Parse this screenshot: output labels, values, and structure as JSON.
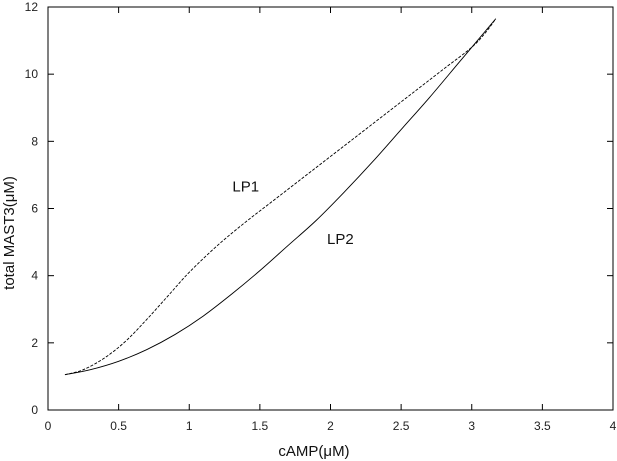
{
  "chart_data": {
    "type": "line",
    "xlabel": "cAMP(μM)",
    "ylabel": "total MAST3(μM)",
    "xlim": [
      0,
      4
    ],
    "ylim": [
      0,
      12
    ],
    "x_ticks": [
      "0",
      "0.5",
      "1",
      "1.5",
      "2",
      "2.5",
      "3",
      "3.5",
      "4"
    ],
    "y_ticks": [
      "0",
      "2",
      "4",
      "6",
      "8",
      "10",
      "12"
    ],
    "grid": false,
    "legend": "none",
    "series": [
      {
        "name": "LP1",
        "line_style": "dashed",
        "x": [
          0.12,
          0.25,
          0.4,
          0.55,
          0.7,
          0.85,
          1.0,
          1.2,
          1.4,
          1.6,
          1.8,
          2.0,
          2.2,
          2.4,
          2.6,
          2.8,
          3.0,
          3.1,
          3.17
        ],
        "y": [
          1.05,
          1.2,
          1.55,
          2.05,
          2.7,
          3.4,
          4.1,
          4.9,
          5.6,
          6.25,
          6.9,
          7.55,
          8.2,
          8.85,
          9.5,
          10.15,
          10.8,
          11.25,
          11.65
        ]
      },
      {
        "name": "LP2",
        "line_style": "solid",
        "x": [
          0.12,
          0.3,
          0.5,
          0.7,
          0.9,
          1.1,
          1.3,
          1.5,
          1.7,
          1.9,
          2.1,
          2.3,
          2.5,
          2.7,
          2.9,
          3.0,
          3.1,
          3.17
        ],
        "y": [
          1.05,
          1.2,
          1.45,
          1.8,
          2.25,
          2.8,
          3.45,
          4.15,
          4.9,
          5.65,
          6.5,
          7.4,
          8.35,
          9.3,
          10.3,
          10.8,
          11.3,
          11.65
        ]
      }
    ],
    "annotations": [
      {
        "text": "LP1",
        "x": 1.4,
        "y": 6.5
      },
      {
        "text": "LP2",
        "x": 2.07,
        "y": 4.95
      }
    ]
  }
}
